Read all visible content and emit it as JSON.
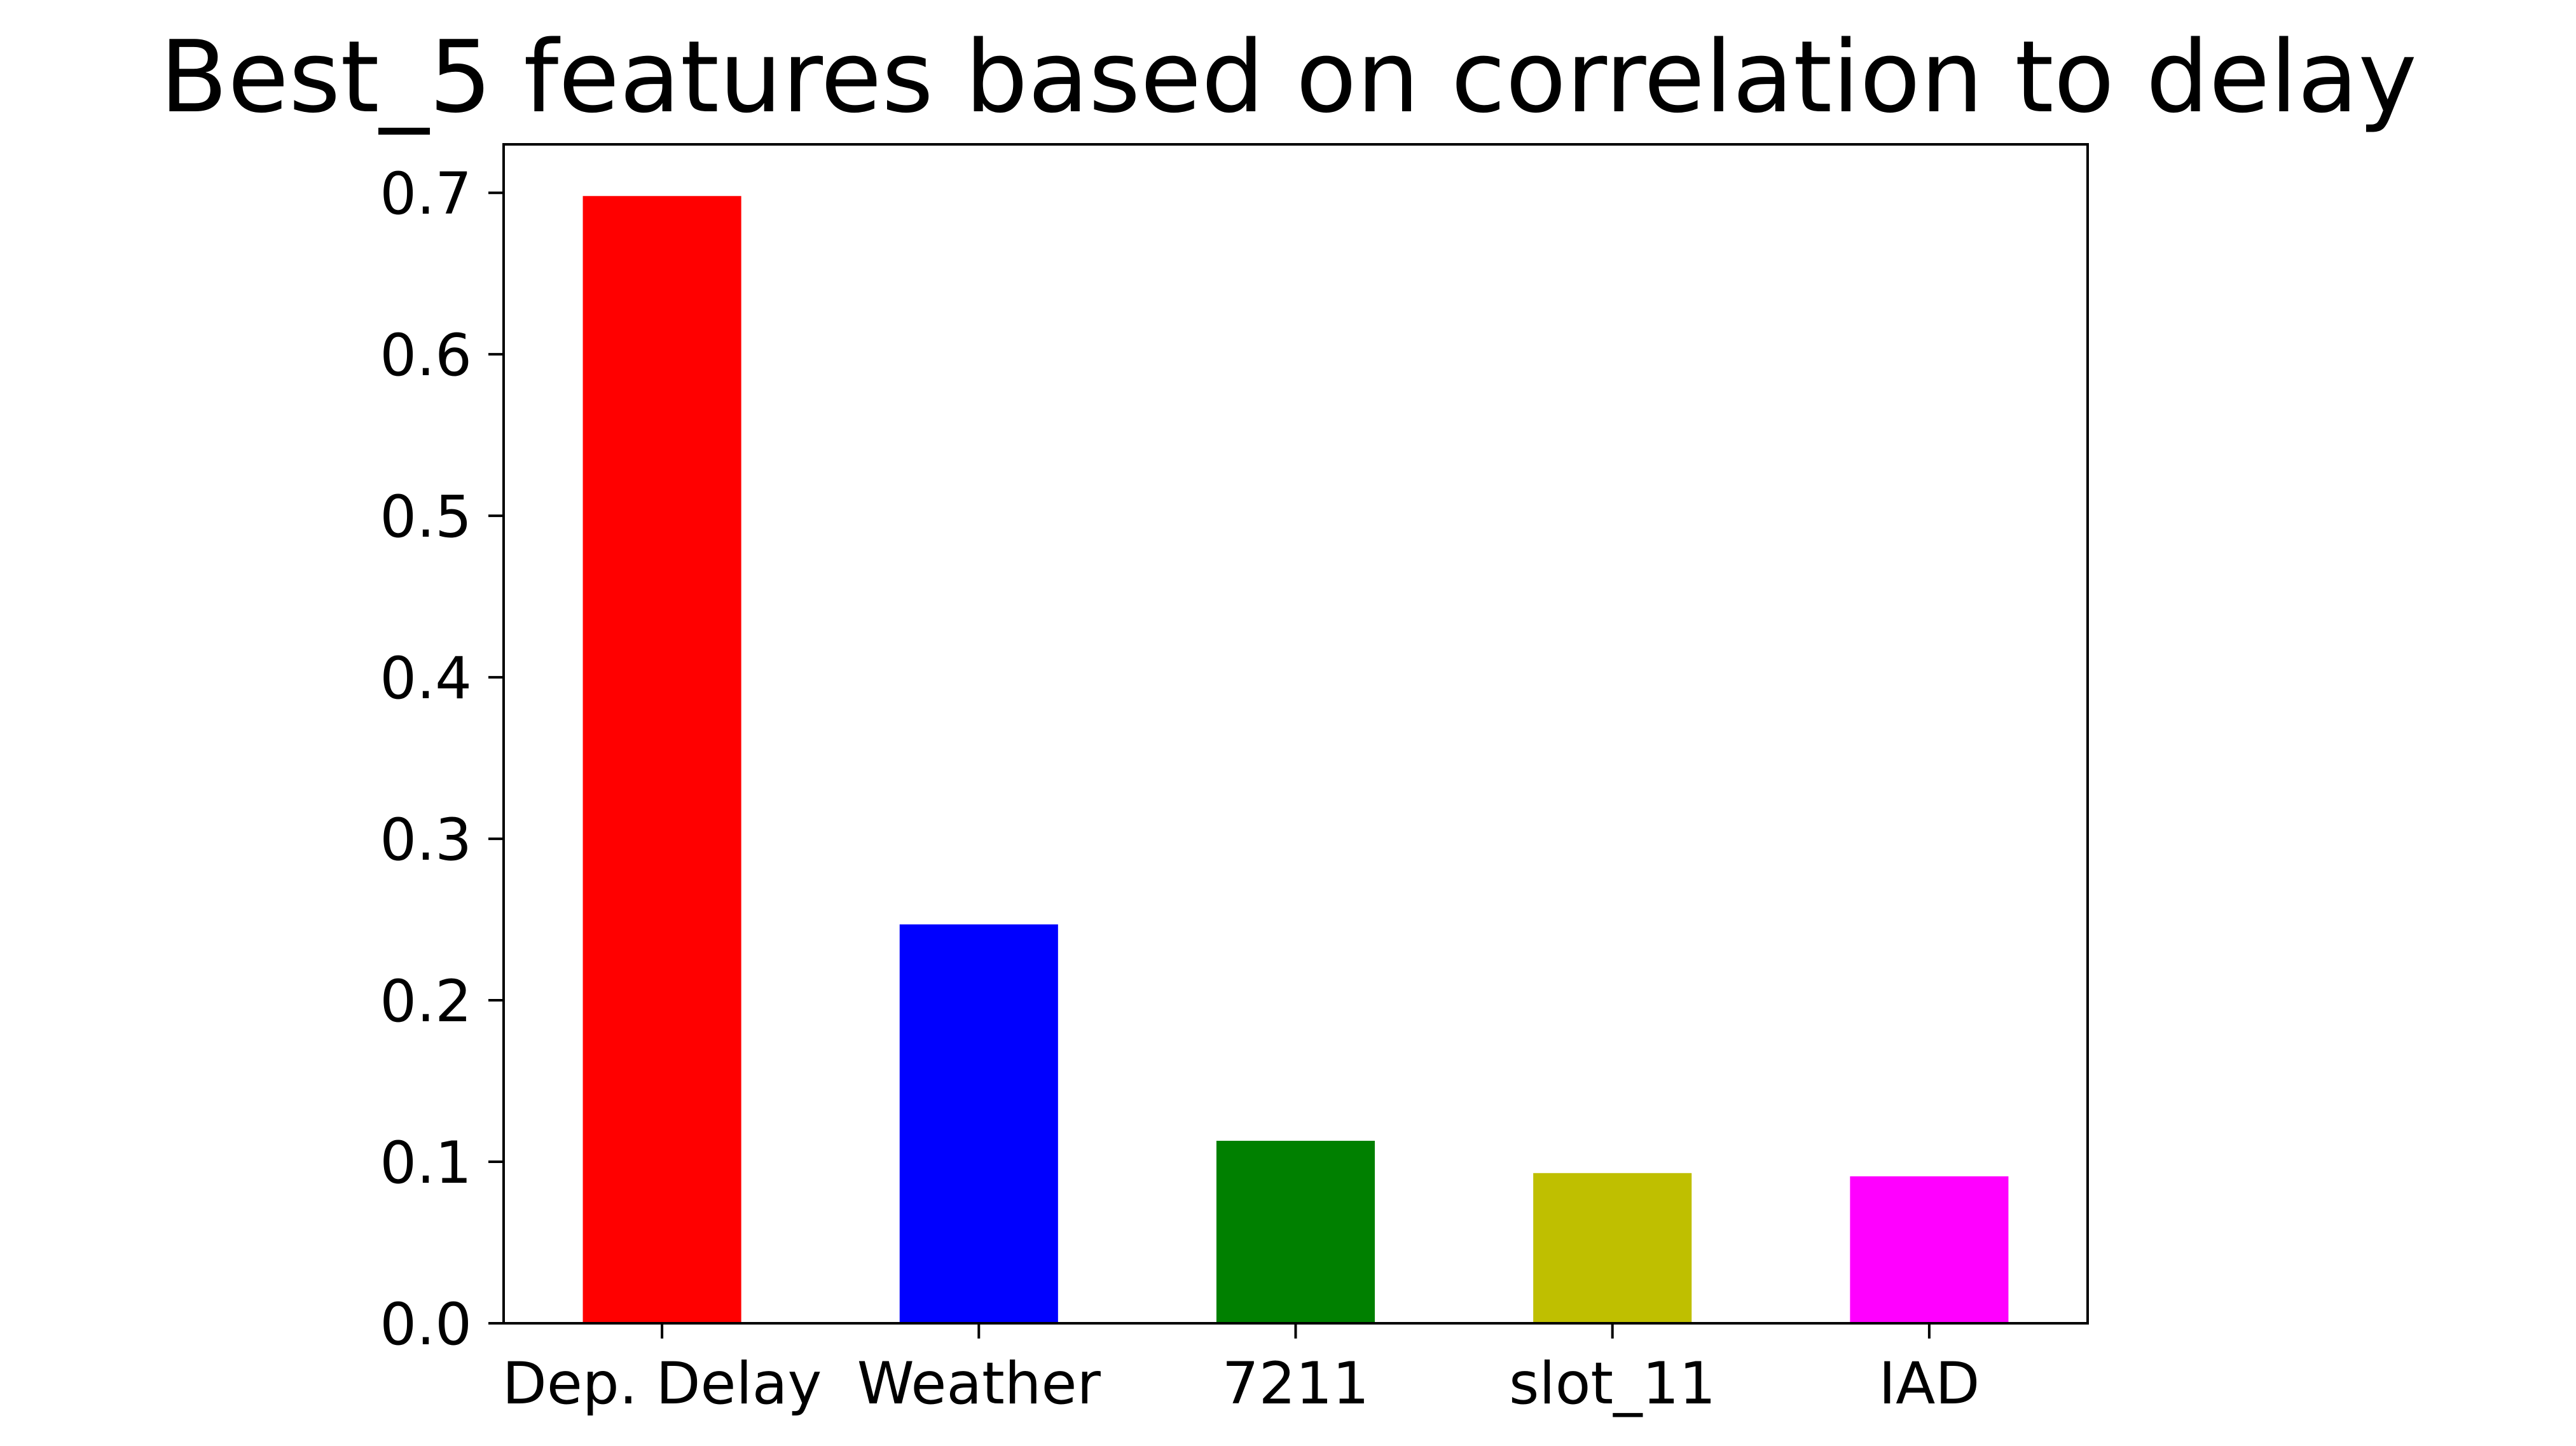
{
  "chart_data": {
    "type": "bar",
    "title": "Best_5 features based on correlation to delay",
    "xlabel": "",
    "ylabel": "",
    "categories": [
      "Dep. Delay",
      "Weather",
      "7211",
      "slot_11",
      "IAD"
    ],
    "values": [
      0.698,
      0.247,
      0.113,
      0.093,
      0.091
    ],
    "colors": [
      "#ff0000",
      "#0000ff",
      "#008000",
      "#bfbf00",
      "#ff00ff"
    ],
    "ylim": [
      0,
      0.73
    ],
    "yticks": [
      0.0,
      0.1,
      0.2,
      0.3,
      0.4,
      0.5,
      0.6,
      0.7
    ],
    "ytick_labels": [
      "0.0",
      "0.1",
      "0.2",
      "0.3",
      "0.4",
      "0.5",
      "0.6",
      "0.7"
    ],
    "grid": false,
    "legend": "none"
  }
}
